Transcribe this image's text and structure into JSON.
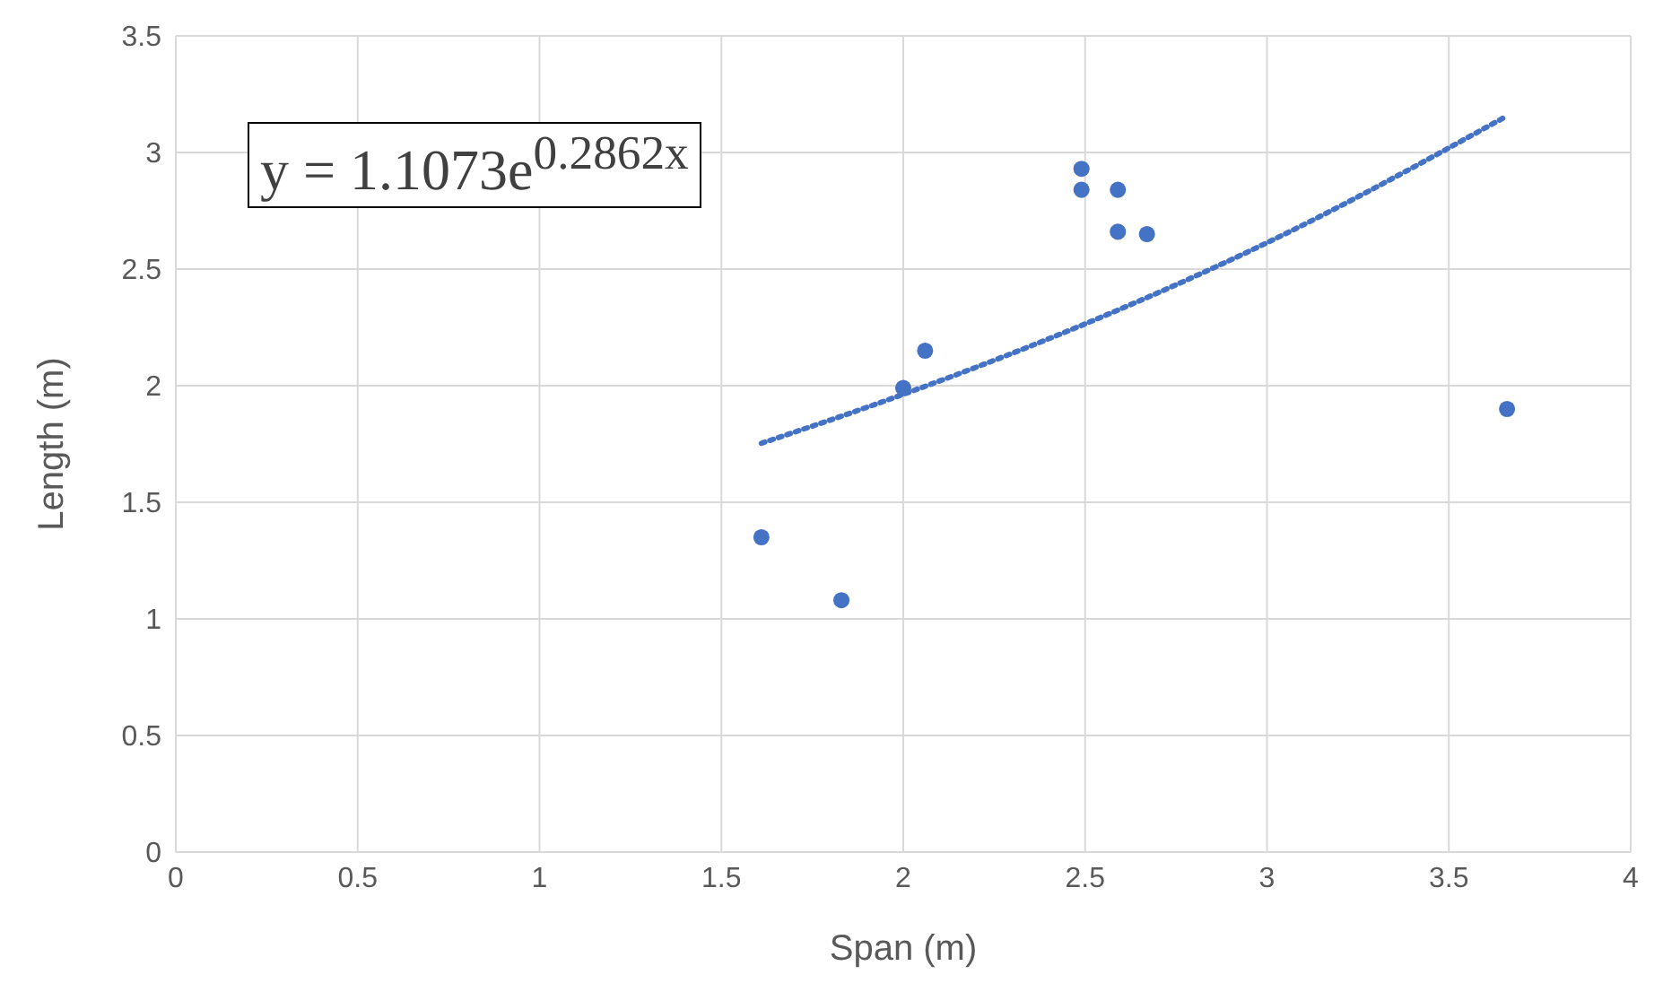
{
  "chart_data": {
    "type": "scatter",
    "xlabel": "Span (m)",
    "ylabel": "Length (m)",
    "annotations": [
      "y = 1.1073e$^{0.2862x}$"
    ],
    "xlim": [
      0,
      4
    ],
    "xticks": [
      0,
      0.5,
      1,
      1.5,
      2,
      2.5,
      3,
      3.5,
      4
    ],
    "ylim": [
      0,
      3.5
    ],
    "yticks": [
      0,
      0.5,
      1,
      1.5,
      2,
      2.5,
      3,
      3.5
    ],
    "grid": true,
    "marker": "circle",
    "series": [
      {
        "color": "#4472c4",
        "x": [
          1.61,
          1.83,
          2.0,
          2.06,
          2.49,
          2.49,
          2.59,
          2.59,
          2.67,
          3.66
        ],
        "values": [
          1.35,
          1.08,
          1.99,
          2.15,
          2.93,
          2.84,
          2.84,
          2.66,
          2.65,
          1.9
        ]
      },
      {
        "type": "line",
        "color": "#4472c4",
        "line_style": "dotted",
        "marker": "none",
        "x": [
          1.61,
          2.0,
          2.5,
          3.0,
          3.66
        ],
        "values": [
          1.753,
          1.963,
          2.265,
          2.613,
          3.157
        ]
      }
    ]
  }
}
